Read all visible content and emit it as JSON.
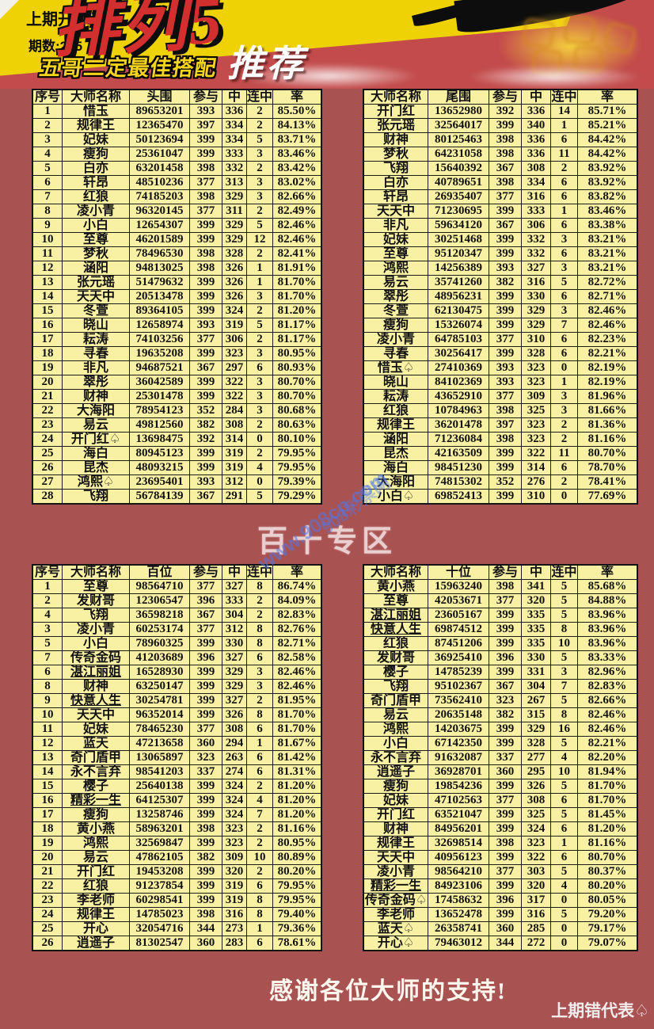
{
  "header": {
    "prev_draw": "上期开2456",
    "issue_no": "期数:235",
    "logo": "排列5",
    "subtitle": "五哥二定最佳搭配",
    "recommend": "推荐"
  },
  "middle_banner": "百十专区",
  "footer": {
    "thanks": "感谢各位大师的支持!",
    "note": "上期错代表♤"
  },
  "watermarks": {
    "site_url": "www.908cp.com",
    "site_name": "908彩票网"
  },
  "underlined_names": [
    "湛江丽姐",
    "精彩一生",
    "快意人生"
  ],
  "colors": {
    "page_bg": "#a95252",
    "banner_yellow": "#eed205",
    "banner_red": "#c34b4b",
    "cell_bg": "#f8f0a2",
    "logo_red": "#d42f2f",
    "subtitle_yellow": "#f6d31e"
  },
  "tables": {
    "head": {
      "columns": [
        "序号",
        "大师名称",
        "头围",
        "参与",
        "中",
        "连中",
        "率"
      ],
      "rows": [
        [
          "1",
          "惜玉",
          "89653201",
          "393",
          "336",
          "2",
          "85.50%"
        ],
        [
          "2",
          "规律王",
          "12365470",
          "397",
          "334",
          "2",
          "84.13%"
        ],
        [
          "3",
          "妃妹",
          "50123694",
          "399",
          "334",
          "5",
          "83.71%"
        ],
        [
          "4",
          "瘦狗",
          "25361047",
          "399",
          "333",
          "3",
          "83.46%"
        ],
        [
          "5",
          "白亦",
          "63201458",
          "398",
          "332",
          "2",
          "83.42%"
        ],
        [
          "6",
          "轩昂",
          "48510236",
          "377",
          "313",
          "3",
          "83.02%"
        ],
        [
          "7",
          "红狼",
          "74185203",
          "398",
          "329",
          "3",
          "82.66%"
        ],
        [
          "8",
          "凌小青",
          "96320145",
          "377",
          "311",
          "2",
          "82.49%"
        ],
        [
          "9",
          "小白",
          "12654307",
          "399",
          "329",
          "5",
          "82.46%"
        ],
        [
          "10",
          "至尊",
          "46201589",
          "399",
          "329",
          "12",
          "82.46%"
        ],
        [
          "11",
          "梦秋",
          "78496530",
          "398",
          "328",
          "2",
          "82.41%"
        ],
        [
          "12",
          "涵阳",
          "94813025",
          "398",
          "326",
          "1",
          "81.91%"
        ],
        [
          "13",
          "张元瑶",
          "51479632",
          "399",
          "326",
          "1",
          "81.70%"
        ],
        [
          "14",
          "天天中",
          "20513478",
          "399",
          "326",
          "3",
          "81.70%"
        ],
        [
          "15",
          "冬萱",
          "89364105",
          "399",
          "324",
          "2",
          "81.20%"
        ],
        [
          "16",
          "晓山",
          "12658974",
          "393",
          "319",
          "5",
          "81.17%"
        ],
        [
          "17",
          "耘涛",
          "74103256",
          "377",
          "306",
          "2",
          "81.17%"
        ],
        [
          "18",
          "寻春",
          "19635208",
          "399",
          "323",
          "3",
          "80.95%"
        ],
        [
          "19",
          "非凡",
          "94687521",
          "367",
          "297",
          "6",
          "80.93%"
        ],
        [
          "20",
          "翠彤",
          "36042589",
          "399",
          "322",
          "3",
          "80.70%"
        ],
        [
          "21",
          "财神",
          "25301478",
          "399",
          "322",
          "3",
          "80.70%"
        ],
        [
          "22",
          "大海阳",
          "78954123",
          "352",
          "284",
          "3",
          "80.68%"
        ],
        [
          "23",
          "易云",
          "49812560",
          "382",
          "308",
          "2",
          "80.63%"
        ],
        [
          "24",
          "开门红♤",
          "13698475",
          "392",
          "314",
          "0",
          "80.10%"
        ],
        [
          "25",
          "海白",
          "80945123",
          "399",
          "319",
          "2",
          "79.95%"
        ],
        [
          "26",
          "昆杰",
          "48093215",
          "399",
          "319",
          "4",
          "79.95%"
        ],
        [
          "27",
          "鸿熙♤",
          "23695401",
          "393",
          "312",
          "0",
          "79.39%"
        ],
        [
          "28",
          "飞翔",
          "56784139",
          "367",
          "291",
          "5",
          "79.29%"
        ]
      ]
    },
    "tail": {
      "columns": [
        "大师名称",
        "尾围",
        "参与",
        "中",
        "连中",
        "率"
      ],
      "rows": [
        [
          "开门红",
          "13652980",
          "392",
          "336",
          "14",
          "85.71%"
        ],
        [
          "张元瑶",
          "32564017",
          "399",
          "340",
          "1",
          "85.21%"
        ],
        [
          "财神",
          "80125463",
          "398",
          "336",
          "6",
          "84.42%"
        ],
        [
          "梦秋",
          "64231058",
          "398",
          "336",
          "11",
          "84.42%"
        ],
        [
          "飞翔",
          "15640392",
          "367",
          "308",
          "2",
          "83.92%"
        ],
        [
          "白亦",
          "40789651",
          "398",
          "334",
          "6",
          "83.92%"
        ],
        [
          "轩昂",
          "26935407",
          "377",
          "316",
          "6",
          "83.82%"
        ],
        [
          "天天中",
          "71230695",
          "399",
          "333",
          "1",
          "83.46%"
        ],
        [
          "非凡",
          "59634120",
          "367",
          "306",
          "6",
          "83.38%"
        ],
        [
          "妃妹",
          "30251468",
          "399",
          "332",
          "3",
          "83.21%"
        ],
        [
          "至尊",
          "95120347",
          "399",
          "332",
          "6",
          "83.21%"
        ],
        [
          "鸿熙",
          "14256389",
          "393",
          "327",
          "3",
          "83.21%"
        ],
        [
          "易云",
          "35741260",
          "382",
          "316",
          "5",
          "82.72%"
        ],
        [
          "翠彤",
          "48956231",
          "399",
          "330",
          "6",
          "82.71%"
        ],
        [
          "冬萱",
          "62130475",
          "399",
          "329",
          "3",
          "82.46%"
        ],
        [
          "瘦狗",
          "15326074",
          "399",
          "329",
          "7",
          "82.46%"
        ],
        [
          "凌小青",
          "64785103",
          "377",
          "310",
          "6",
          "82.23%"
        ],
        [
          "寻春",
          "30256417",
          "399",
          "328",
          "6",
          "82.21%"
        ],
        [
          "惜玉♤",
          "27410369",
          "393",
          "323",
          "0",
          "82.19%"
        ],
        [
          "晓山",
          "84102369",
          "393",
          "323",
          "1",
          "82.19%"
        ],
        [
          "耘涛",
          "43652910",
          "377",
          "309",
          "3",
          "81.96%"
        ],
        [
          "红狼",
          "10784963",
          "398",
          "325",
          "3",
          "81.66%"
        ],
        [
          "规律王",
          "36201478",
          "397",
          "323",
          "2",
          "81.36%"
        ],
        [
          "涵阳",
          "71236084",
          "398",
          "323",
          "2",
          "81.16%"
        ],
        [
          "昆杰",
          "42163509",
          "399",
          "322",
          "11",
          "80.70%"
        ],
        [
          "海白",
          "98451230",
          "399",
          "314",
          "6",
          "78.70%"
        ],
        [
          "大海阳",
          "74815302",
          "352",
          "276",
          "2",
          "78.41%"
        ],
        [
          "小白♤",
          "69852413",
          "399",
          "310",
          "0",
          "77.69%"
        ]
      ]
    },
    "hundreds": {
      "columns": [
        "序号",
        "大师名称",
        "百位",
        "参与",
        "中",
        "连中",
        "率"
      ],
      "rows": [
        [
          "1",
          "至尊",
          "98564710",
          "377",
          "327",
          "8",
          "86.74%"
        ],
        [
          "2",
          "发财哥",
          "12306547",
          "396",
          "333",
          "2",
          "84.09%"
        ],
        [
          "4",
          "飞翔",
          "36598218",
          "367",
          "304",
          "2",
          "82.83%"
        ],
        [
          "3",
          "凌小青",
          "60253174",
          "377",
          "312",
          "8",
          "82.76%"
        ],
        [
          "5",
          "小白",
          "78960325",
          "399",
          "330",
          "8",
          "82.71%"
        ],
        [
          "7",
          "传奇金码",
          "41203689",
          "396",
          "327",
          "6",
          "82.58%"
        ],
        [
          "6",
          "湛江丽姐",
          "16528930",
          "399",
          "329",
          "3",
          "82.46%"
        ],
        [
          "8",
          "财神",
          "63250147",
          "399",
          "329",
          "3",
          "82.46%"
        ],
        [
          "9",
          "快意人生",
          "30254781",
          "399",
          "327",
          "2",
          "81.95%"
        ],
        [
          "10",
          "天天中",
          "96352014",
          "399",
          "326",
          "8",
          "81.70%"
        ],
        [
          "11",
          "妃妹",
          "78465230",
          "377",
          "308",
          "6",
          "81.70%"
        ],
        [
          "12",
          "蓝天",
          "47213658",
          "360",
          "294",
          "1",
          "81.67%"
        ],
        [
          "13",
          "奇门盾甲",
          "13065897",
          "323",
          "263",
          "6",
          "81.42%"
        ],
        [
          "14",
          "永不言弃",
          "98541203",
          "337",
          "274",
          "6",
          "81.31%"
        ],
        [
          "15",
          "樱子",
          "25640138",
          "399",
          "324",
          "2",
          "81.20%"
        ],
        [
          "16",
          "精彩一生",
          "64125307",
          "399",
          "324",
          "4",
          "81.20%"
        ],
        [
          "17",
          "瘦狗",
          "13258746",
          "399",
          "324",
          "7",
          "81.20%"
        ],
        [
          "18",
          "黄小燕",
          "58963201",
          "398",
          "323",
          "2",
          "81.16%"
        ],
        [
          "19",
          "鸿熙",
          "32569847",
          "399",
          "323",
          "2",
          "80.95%"
        ],
        [
          "20",
          "易云",
          "47862105",
          "382",
          "309",
          "10",
          "80.89%"
        ],
        [
          "21",
          "开门红",
          "19453208",
          "399",
          "320",
          "2",
          "80.20%"
        ],
        [
          "22",
          "红狼",
          "91237854",
          "399",
          "319",
          "6",
          "79.95%"
        ],
        [
          "23",
          "李老师",
          "60298541",
          "399",
          "319",
          "8",
          "79.95%"
        ],
        [
          "24",
          "规律王",
          "14785023",
          "398",
          "316",
          "8",
          "79.40%"
        ],
        [
          "25",
          "开心",
          "32054716",
          "344",
          "273",
          "1",
          "79.36%"
        ],
        [
          "26",
          "逍遥子",
          "81302547",
          "360",
          "283",
          "6",
          "78.61%"
        ]
      ]
    },
    "tens": {
      "columns": [
        "大师名称",
        "十位",
        "参与",
        "中",
        "连中",
        "率"
      ],
      "rows": [
        [
          "黄小燕",
          "15963240",
          "398",
          "341",
          "5",
          "85.68%"
        ],
        [
          "至尊",
          "42053671",
          "377",
          "320",
          "5",
          "84.88%"
        ],
        [
          "湛江丽姐",
          "23605167",
          "399",
          "335",
          "5",
          "83.96%"
        ],
        [
          "快意人生",
          "69874512",
          "399",
          "335",
          "8",
          "83.96%"
        ],
        [
          "红狼",
          "87451206",
          "399",
          "335",
          "10",
          "83.96%"
        ],
        [
          "发财哥",
          "36925410",
          "396",
          "330",
          "5",
          "83.33%"
        ],
        [
          "樱子",
          "14785239",
          "399",
          "331",
          "3",
          "82.96%"
        ],
        [
          "飞翔",
          "95102367",
          "367",
          "304",
          "7",
          "82.83%"
        ],
        [
          "奇门盾甲",
          "73562410",
          "323",
          "267",
          "5",
          "82.66%"
        ],
        [
          "易云",
          "20635148",
          "382",
          "315",
          "8",
          "82.46%"
        ],
        [
          "鸿熙",
          "14203675",
          "399",
          "329",
          "16",
          "82.46%"
        ],
        [
          "小白",
          "67142350",
          "399",
          "328",
          "5",
          "82.21%"
        ],
        [
          "永不言弃",
          "91632087",
          "337",
          "277",
          "4",
          "82.20%"
        ],
        [
          "逍遥子",
          "36928701",
          "360",
          "295",
          "10",
          "81.94%"
        ],
        [
          "瘦狗",
          "19854236",
          "399",
          "326",
          "5",
          "81.70%"
        ],
        [
          "妃妹",
          "47102563",
          "377",
          "308",
          "6",
          "81.70%"
        ],
        [
          "开门红",
          "63521047",
          "399",
          "325",
          "5",
          "81.45%"
        ],
        [
          "财神",
          "84956201",
          "399",
          "324",
          "6",
          "81.20%"
        ],
        [
          "规律王",
          "32698514",
          "398",
          "323",
          "1",
          "81.16%"
        ],
        [
          "天天中",
          "40956123",
          "399",
          "322",
          "6",
          "80.70%"
        ],
        [
          "凌小青",
          "98564210",
          "377",
          "303",
          "5",
          "80.37%"
        ],
        [
          "精彩一生",
          "84923106",
          "399",
          "320",
          "4",
          "80.20%"
        ],
        [
          "传奇金码♤",
          "17458632",
          "396",
          "317",
          "0",
          "80.05%"
        ],
        [
          "李老师",
          "13652478",
          "399",
          "316",
          "5",
          "79.20%"
        ],
        [
          "蓝天♤",
          "26358741",
          "360",
          "285",
          "0",
          "79.17%"
        ],
        [
          "开心♤",
          "79463012",
          "344",
          "272",
          "0",
          "79.07%"
        ]
      ]
    }
  }
}
